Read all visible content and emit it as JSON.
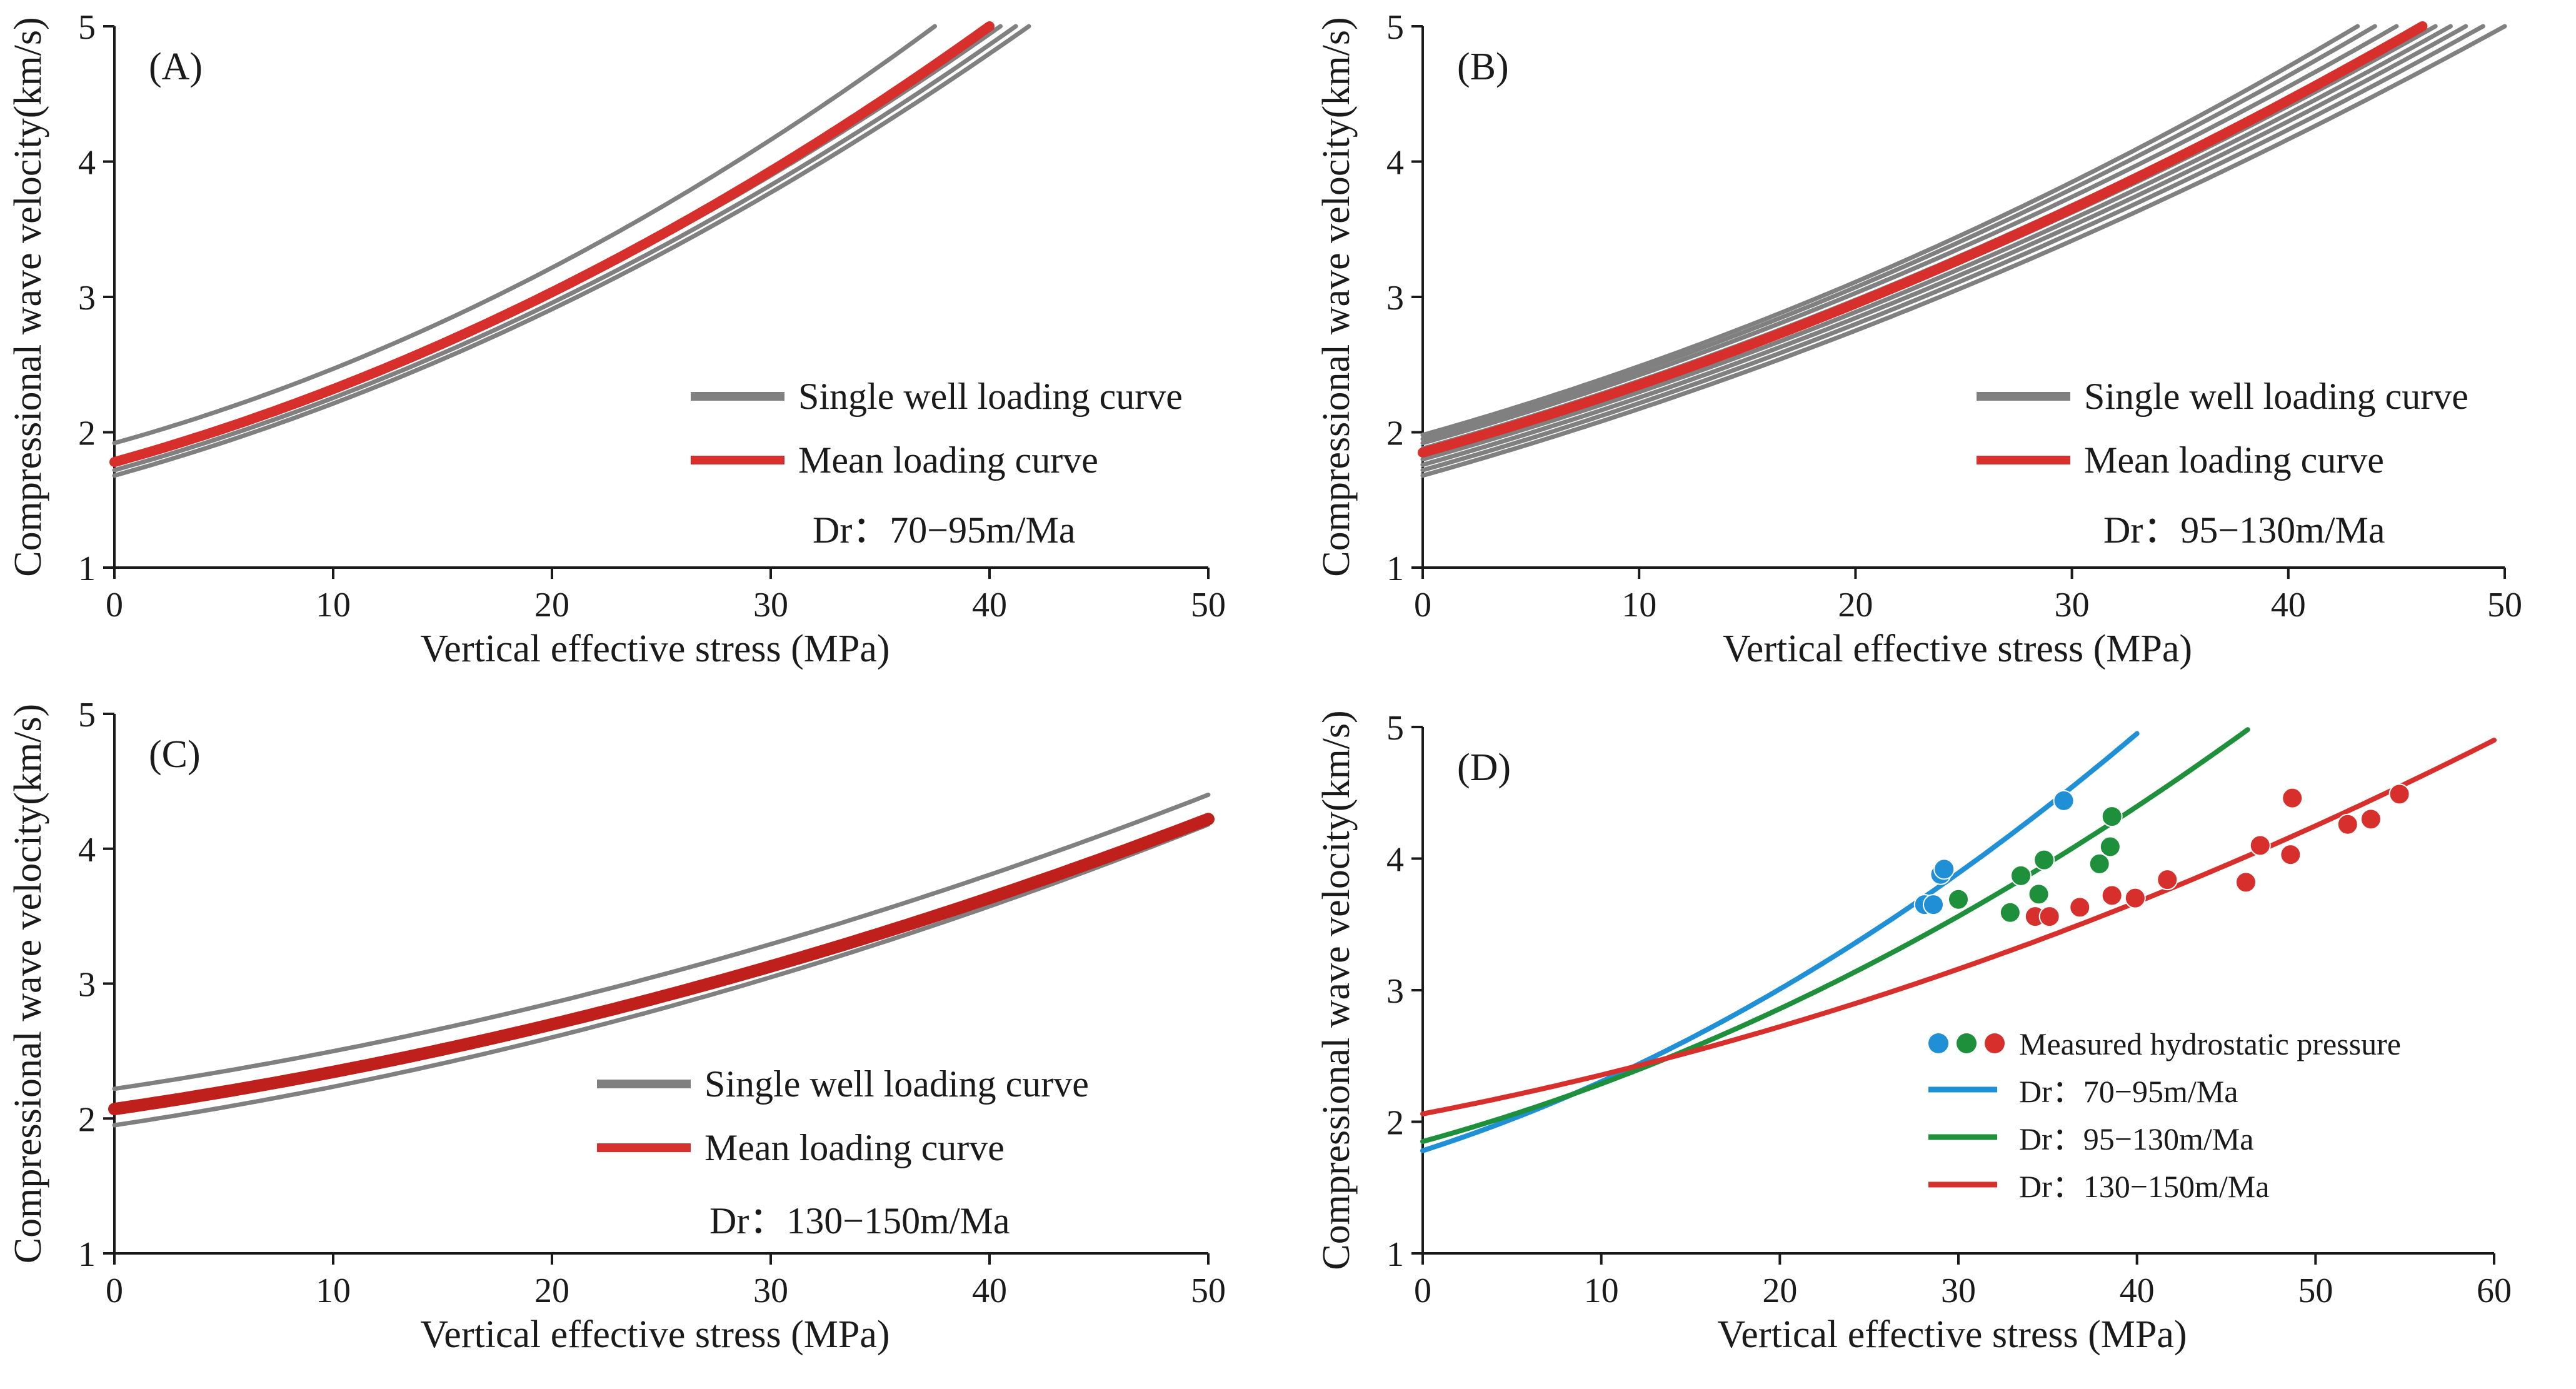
{
  "colors": {
    "single_well": "#808080",
    "mean": "#d7302c",
    "mean_dark": "#c0201c",
    "blue": "#1f8fd6",
    "green": "#1e8f3a",
    "red": "#d7302c",
    "axis": "#1a1a1a"
  },
  "chart_data": [
    {
      "panel": "A",
      "type": "line",
      "panel_label": "(A)",
      "xlabel": "Vertical effective stress (MPa)",
      "ylabel": "Compressional wave velocity(km/s)",
      "xlim": [
        0,
        50
      ],
      "ylim": [
        1,
        5
      ],
      "xticks": [
        "0",
        "10",
        "20",
        "30",
        "40",
        "50"
      ],
      "yticks": [
        "1",
        "2",
        "3",
        "4",
        "5"
      ],
      "legend": [
        {
          "label": "Single well loading curve",
          "color_key": "single_well",
          "marker": "line"
        },
        {
          "label": "Mean loading curve",
          "color_key": "mean",
          "marker": "line"
        }
      ],
      "annotation": "Dr：70−95m/Ma",
      "series": [
        {
          "name": "Single well loading curve",
          "role": "single",
          "v0": 1.92,
          "x_end": 37.5
        },
        {
          "name": "Single well loading curve",
          "role": "single",
          "v0": 1.78,
          "x_end": 40.5
        },
        {
          "name": "Single well loading curve",
          "role": "single",
          "v0": 1.72,
          "x_end": 41.2
        },
        {
          "name": "Single well loading curve",
          "role": "single",
          "v0": 1.68,
          "x_end": 41.8
        },
        {
          "name": "Mean loading curve",
          "role": "mean",
          "v0": 1.78,
          "x_end": 40.0
        }
      ]
    },
    {
      "panel": "B",
      "type": "line",
      "panel_label": "(B)",
      "xlabel": "Vertical effective stress (MPa)",
      "ylabel": "Compressional wave velocity(km/s)",
      "xlim": [
        0,
        50
      ],
      "ylim": [
        1,
        5
      ],
      "xticks": [
        "0",
        "10",
        "20",
        "30",
        "40",
        "50"
      ],
      "yticks": [
        "1",
        "2",
        "3",
        "4",
        "5"
      ],
      "legend": [
        {
          "label": "Single well loading curve",
          "color_key": "single_well",
          "marker": "line"
        },
        {
          "label": "Mean loading curve",
          "color_key": "mean",
          "marker": "line"
        }
      ],
      "annotation": "Dr：95−130m/Ma",
      "series": [
        {
          "name": "Single well loading curve",
          "role": "single",
          "v0": 1.98,
          "x_end": 43.2
        },
        {
          "name": "Single well loading curve",
          "role": "single",
          "v0": 1.95,
          "x_end": 44.0
        },
        {
          "name": "Single well loading curve",
          "role": "single",
          "v0": 1.92,
          "x_end": 45.0
        },
        {
          "name": "Single well loading curve",
          "role": "single",
          "v0": 1.88,
          "x_end": 46.0
        },
        {
          "name": "Single well loading curve",
          "role": "single",
          "v0": 1.84,
          "x_end": 46.8
        },
        {
          "name": "Single well loading curve",
          "role": "single",
          "v0": 1.8,
          "x_end": 47.5
        },
        {
          "name": "Single well loading curve",
          "role": "single",
          "v0": 1.76,
          "x_end": 48.2
        },
        {
          "name": "Single well loading curve",
          "role": "single",
          "v0": 1.72,
          "x_end": 49.0
        },
        {
          "name": "Single well loading curve",
          "role": "single",
          "v0": 1.68,
          "x_end": 50.0
        },
        {
          "name": "Mean loading curve",
          "role": "mean",
          "v0": 1.85,
          "x_end": 46.2
        }
      ]
    },
    {
      "panel": "C",
      "type": "line",
      "panel_label": "(C)",
      "xlabel": "Vertical effective stress (MPa)",
      "ylabel": "Compressional wave velocity(km/s)",
      "xlim": [
        0,
        50
      ],
      "ylim": [
        1,
        5
      ],
      "xticks": [
        "0",
        "10",
        "20",
        "30",
        "40",
        "50"
      ],
      "yticks": [
        "1",
        "2",
        "3",
        "4",
        "5"
      ],
      "legend": [
        {
          "label": "Single well loading curve",
          "color_key": "single_well",
          "marker": "line"
        },
        {
          "label": "Mean loading curve",
          "color_key": "mean",
          "marker": "line"
        }
      ],
      "annotation": "Dr：130−150m/Ma",
      "series": [
        {
          "name": "Single well loading curve",
          "role": "single",
          "v0": 2.22,
          "x_end": 50,
          "v_end": 4.4
        },
        {
          "name": "Single well loading curve",
          "role": "single",
          "v0": 1.95,
          "x_end": 50,
          "v_end": 4.18
        },
        {
          "name": "Mean loading curve",
          "role": "mean_dark",
          "v0": 2.07,
          "x_end": 50,
          "v_end": 4.22
        }
      ]
    },
    {
      "panel": "D",
      "type": "scatter",
      "panel_label": "(D)",
      "xlabel": "Vertical effective stress (MPa)",
      "ylabel": "Compressional wave velocity(km/s)",
      "xlim": [
        0,
        60
      ],
      "ylim": [
        1,
        5
      ],
      "xticks": [
        "0",
        "10",
        "20",
        "30",
        "40",
        "50",
        "60"
      ],
      "yticks": [
        "1",
        "2",
        "3",
        "4",
        "5"
      ],
      "legend": [
        {
          "label": "Measured hydrostatic pressure",
          "color_key": "multi",
          "marker": "dots"
        },
        {
          "label": "Dr：70−95m/Ma",
          "color_key": "blue",
          "marker": "line"
        },
        {
          "label": "Dr：95−130m/Ma",
          "color_key": "green",
          "marker": "line"
        },
        {
          "label": "Dr：130−150m/Ma",
          "color_key": "red",
          "marker": "line"
        }
      ],
      "series": [
        {
          "name": "Dr：70−95m/Ma",
          "color_key": "blue",
          "role": "fit",
          "v0": 1.78,
          "x_end": 40.0,
          "v_end": 4.95
        },
        {
          "name": "Dr：95−130m/Ma",
          "color_key": "green",
          "role": "fit",
          "v0": 1.85,
          "x_end": 46.2,
          "v_end": 4.98
        },
        {
          "name": "Dr：130−150m/Ma",
          "color_key": "red",
          "role": "fit",
          "v0": 2.06,
          "x_end": 60.0,
          "v_end": 4.9
        }
      ],
      "points": [
        {
          "group": "blue",
          "x": 28.1,
          "y": 3.65
        },
        {
          "group": "blue",
          "x": 28.6,
          "y": 3.65
        },
        {
          "group": "blue",
          "x": 29.0,
          "y": 3.88
        },
        {
          "group": "blue",
          "x": 29.2,
          "y": 3.92
        },
        {
          "group": "blue",
          "x": 35.9,
          "y": 4.44
        },
        {
          "group": "green",
          "x": 30.0,
          "y": 3.69
        },
        {
          "group": "green",
          "x": 32.9,
          "y": 3.59
        },
        {
          "group": "green",
          "x": 33.5,
          "y": 3.87
        },
        {
          "group": "green",
          "x": 34.5,
          "y": 3.73
        },
        {
          "group": "green",
          "x": 34.8,
          "y": 3.99
        },
        {
          "group": "green",
          "x": 37.9,
          "y": 3.96
        },
        {
          "group": "green",
          "x": 38.5,
          "y": 4.09
        },
        {
          "group": "green",
          "x": 38.6,
          "y": 4.32
        },
        {
          "group": "red",
          "x": 34.3,
          "y": 3.56
        },
        {
          "group": "red",
          "x": 35.1,
          "y": 3.56
        },
        {
          "group": "red",
          "x": 36.8,
          "y": 3.63
        },
        {
          "group": "red",
          "x": 38.6,
          "y": 3.72
        },
        {
          "group": "red",
          "x": 39.9,
          "y": 3.7
        },
        {
          "group": "red",
          "x": 41.7,
          "y": 3.84
        },
        {
          "group": "red",
          "x": 46.1,
          "y": 3.82
        },
        {
          "group": "red",
          "x": 46.9,
          "y": 4.1
        },
        {
          "group": "red",
          "x": 48.6,
          "y": 4.03
        },
        {
          "group": "red",
          "x": 48.7,
          "y": 4.46
        },
        {
          "group": "red",
          "x": 51.8,
          "y": 4.26
        },
        {
          "group": "red",
          "x": 53.1,
          "y": 4.3
        },
        {
          "group": "red",
          "x": 54.7,
          "y": 4.49
        }
      ]
    }
  ]
}
